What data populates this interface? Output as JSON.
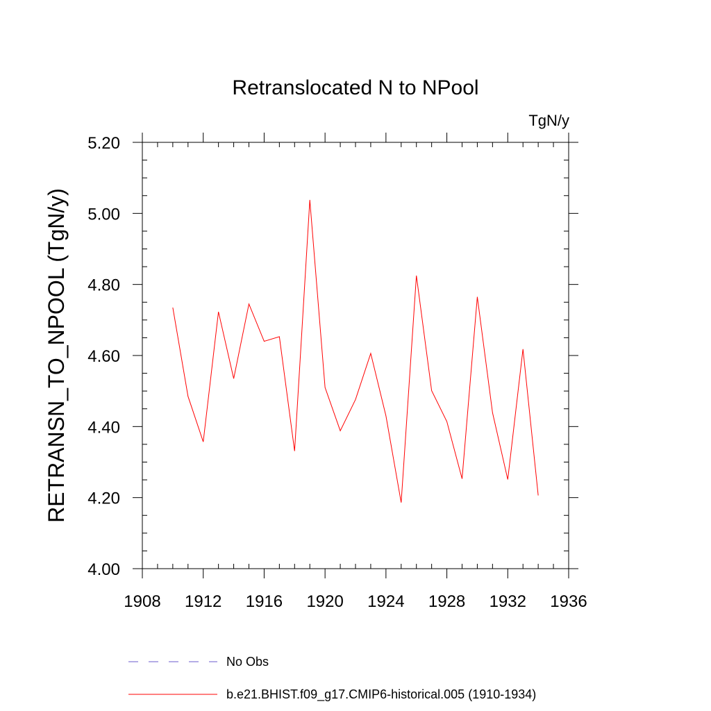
{
  "chart_data": {
    "type": "line",
    "title": "Retranslocated N to NPool",
    "units_label": "TgN/y",
    "ylabel": "RETRANSN_TO_NPOOL  (TgN/y)",
    "xlabel": "",
    "xlim": [
      1908,
      1936
    ],
    "ylim": [
      4.0,
      5.2
    ],
    "x_ticks": [
      1908,
      1912,
      1916,
      1920,
      1924,
      1928,
      1932,
      1936
    ],
    "x_tick_labels": [
      "1908",
      "1912",
      "1916",
      "1920",
      "1924",
      "1928",
      "1932",
      "1936"
    ],
    "y_ticks": [
      4.0,
      4.2,
      4.4,
      4.6,
      4.8,
      5.0,
      5.2
    ],
    "y_tick_labels": [
      "4.00",
      "4.20",
      "4.40",
      "4.60",
      "4.80",
      "5.00",
      "5.20"
    ],
    "grid": false,
    "legend_position": "bottom",
    "series": [
      {
        "name": "b.e21.BHIST.f09_g17.CMIP6-historical.005 (1910-1934)",
        "color": "#ff0000",
        "style": "solid",
        "x": [
          1910,
          1911,
          1912,
          1913,
          1914,
          1915,
          1916,
          1917,
          1918,
          1919,
          1920,
          1921,
          1922,
          1923,
          1924,
          1925,
          1926,
          1927,
          1928,
          1929,
          1930,
          1931,
          1932,
          1933,
          1934
        ],
        "y": [
          4.735,
          4.485,
          4.357,
          4.723,
          4.535,
          4.745,
          4.64,
          4.653,
          4.331,
          5.038,
          4.51,
          4.388,
          4.476,
          4.606,
          4.43,
          4.186,
          4.825,
          4.501,
          4.414,
          4.253,
          4.765,
          4.439,
          4.251,
          4.618,
          4.206
        ]
      }
    ],
    "legend": [
      {
        "label": "No Obs",
        "color": "#6a5acd",
        "style": "dashed"
      },
      {
        "label": "b.e21.BHIST.f09_g17.CMIP6-historical.005 (1910-1934)",
        "color": "#ff0000",
        "style": "solid"
      }
    ]
  }
}
